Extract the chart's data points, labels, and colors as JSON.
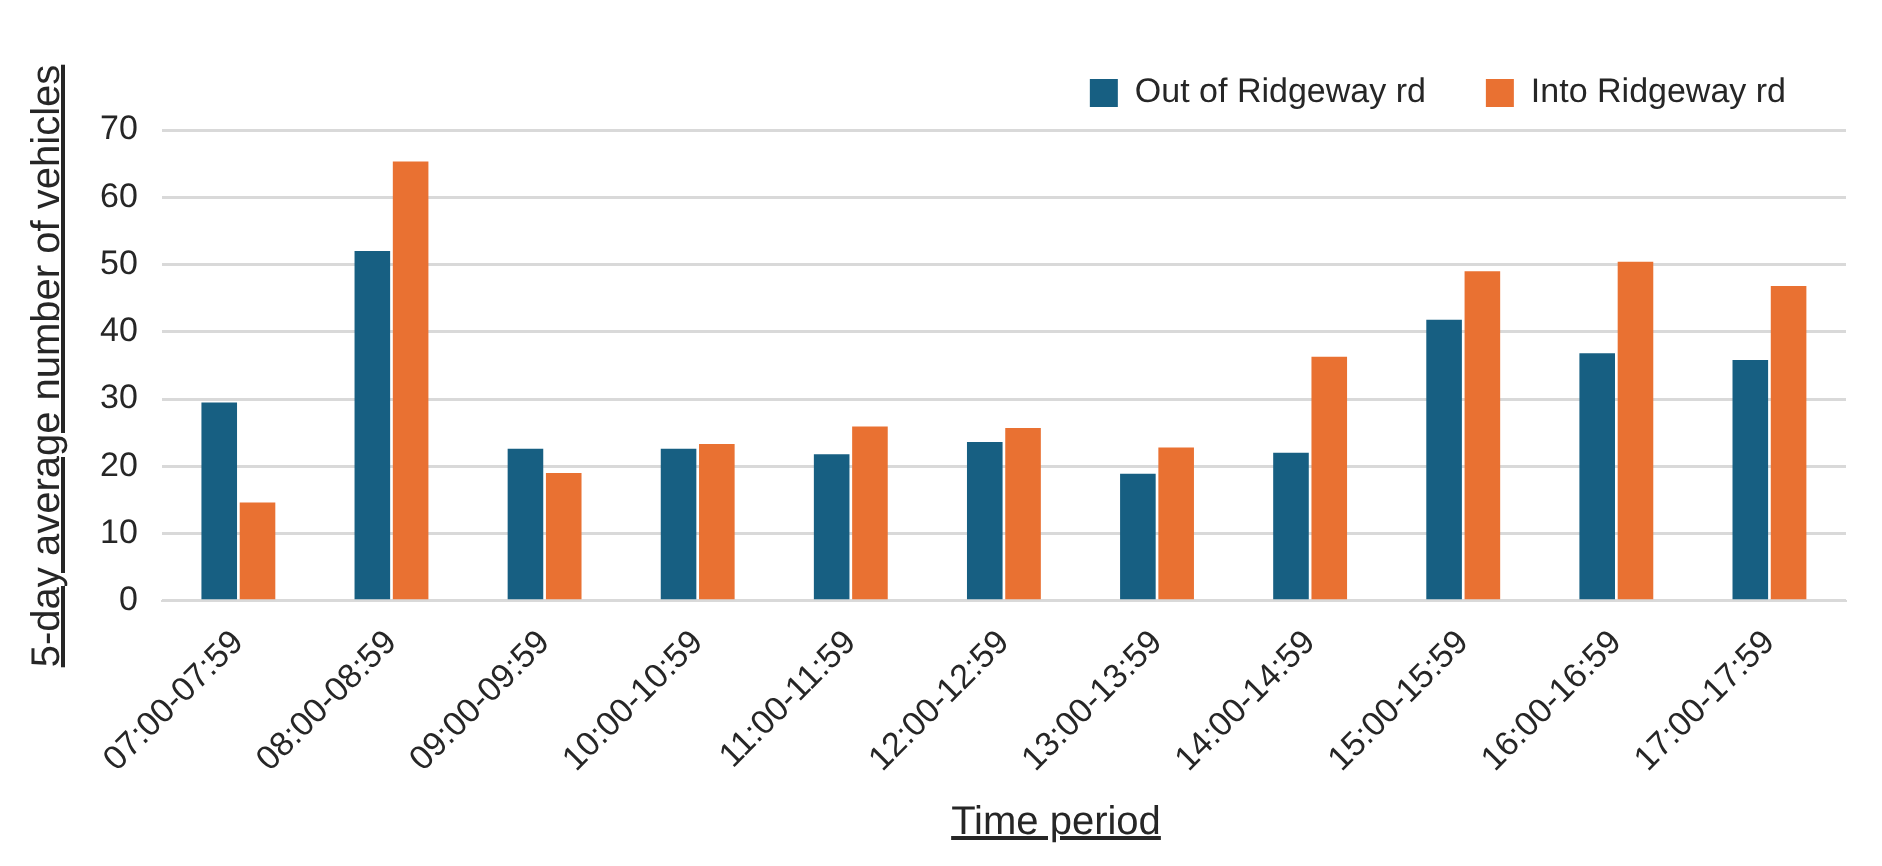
{
  "chart_data": {
    "type": "bar",
    "xlabel": "Time period",
    "ylabel": "5-day average number of vehicles",
    "categories": [
      "07:00-07:59",
      "08:00-08:59",
      "09:00-09:59",
      "10:00-10:59",
      "11:00-11:59",
      "12:00-12:59",
      "13:00-13:59",
      "14:00-14:59",
      "15:00-15:59",
      "16:00-16:59",
      "17:00-17:59"
    ],
    "series": [
      {
        "name": "Out of Ridgeway rd",
        "color": "#175f82",
        "values": [
          29.5,
          52,
          22.6,
          22.6,
          21.8,
          23.6,
          18.9,
          22,
          41.8,
          36.8,
          35.8
        ]
      },
      {
        "name": "Into Ridgeway rd",
        "color": "#e97132",
        "values": [
          14.6,
          65.3,
          19,
          23.3,
          25.9,
          25.7,
          22.8,
          36.3,
          49,
          50.4,
          46.8
        ]
      }
    ],
    "ylim": [
      0,
      70
    ],
    "yticks": [
      0,
      10,
      20,
      30,
      40,
      50,
      60,
      70
    ],
    "grid": "y",
    "legend": "top right"
  }
}
